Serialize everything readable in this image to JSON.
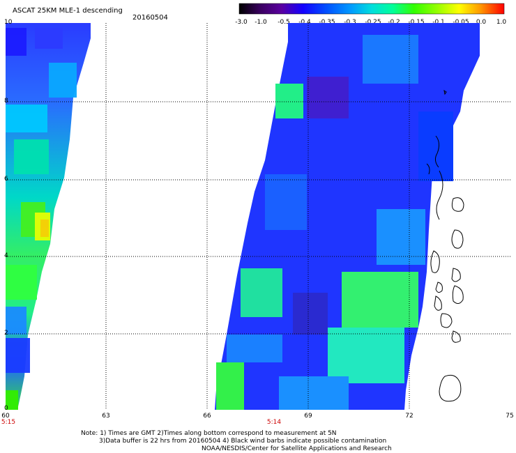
{
  "header": {
    "title": "ASCAT 25KM MLE-1 descending",
    "date": "20160504"
  },
  "colorbar": {
    "ticks": [
      "-3.0",
      "-1.0",
      "-0.5",
      "-0.4",
      "-0.35",
      "-0.3",
      "-0.25",
      "-0.2",
      "-0.15",
      "-0.1",
      "-0.05",
      "0.0",
      "1.0"
    ],
    "colors": [
      "#000000",
      "#5a00a0",
      "#1400ff",
      "#0050ff",
      "#0099ff",
      "#00dddd",
      "#00ff99",
      "#33ff00",
      "#99ff00",
      "#ffff00",
      "#ff9900",
      "#ff3300",
      "#ff0000"
    ]
  },
  "axes": {
    "y_ticks": [
      "10",
      "8",
      "6",
      "4",
      "2",
      "0"
    ],
    "x_ticks": [
      "60",
      "63",
      "66",
      "69",
      "72",
      "75"
    ],
    "x_range": [
      60,
      75
    ],
    "y_range": [
      0,
      10
    ],
    "grid": true
  },
  "pass_times": [
    "5:15",
    "5:14"
  ],
  "footer": {
    "line1": "Note: 1) Times are GMT 2)Times along bottom correspond to measurement at 5N",
    "line2": "3)Data buffer is 22 hrs from 20160504 4) Black wind barbs indicate possible contamination",
    "line3": "NOAA/NESDIS/Center for Satellite Applications and Research"
  }
}
